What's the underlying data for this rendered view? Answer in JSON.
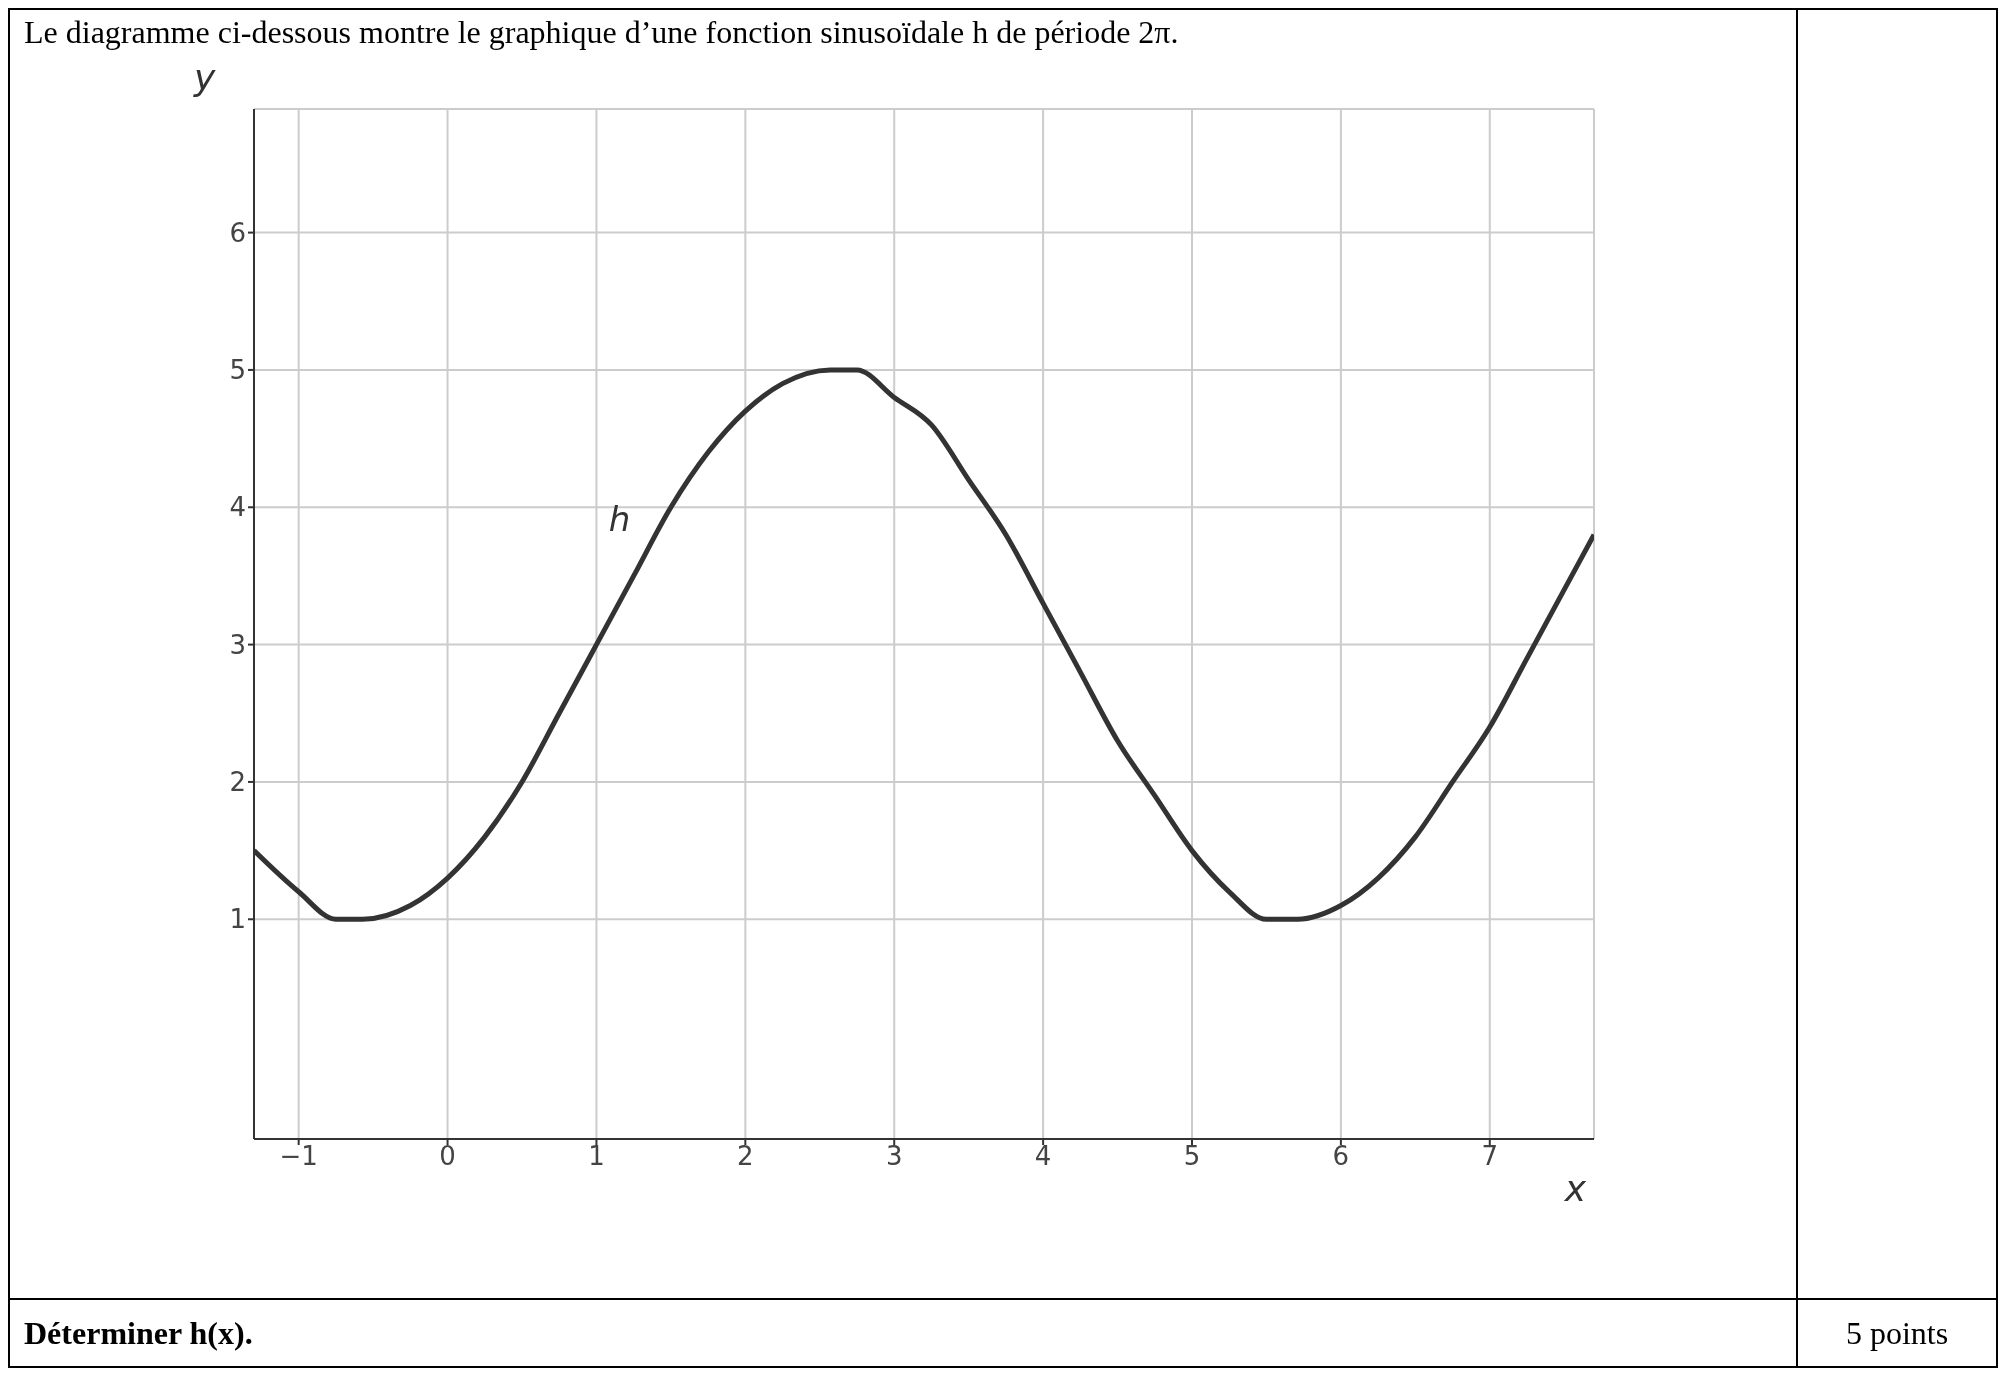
{
  "chart_data": {
    "type": "line",
    "title": "Le diagramme ci-dessous montre le graphique d’une fonction sinusoïdale h de période 2π.",
    "xlabel": "x",
    "ylabel": "y",
    "annotations": [
      "Déterminer h(x).",
      "5 points"
    ],
    "series": [
      {
        "name": "h",
        "color": "#333333",
        "x": [
          -1.3,
          -1,
          -0.75,
          -0.57,
          -0.25,
          0,
          0.25,
          0.5,
          0.75,
          1,
          1.25,
          1.5,
          1.75,
          2,
          2.25,
          2.57,
          2.75,
          3,
          3.25,
          3.5,
          3.75,
          4,
          4.25,
          4.5,
          4.75,
          5,
          5.25,
          5.5,
          5.71,
          6,
          6.25,
          6.5,
          6.75,
          7,
          7.25,
          7.5,
          7.7
        ],
        "values": [
          1.5,
          1.2,
          1.0,
          1.0,
          1.1,
          1.3,
          1.6,
          2.0,
          2.5,
          3.0,
          3.5,
          4.0,
          4.4,
          4.7,
          4.9,
          5.0,
          5.0,
          4.8,
          4.6,
          4.2,
          3.8,
          3.3,
          2.8,
          2.3,
          1.9,
          1.5,
          1.2,
          1.0,
          1.0,
          1.1,
          1.3,
          1.6,
          2.0,
          2.4,
          2.9,
          3.4,
          3.8
        ]
      }
    ],
    "xlim": [
      -1.3,
      7.7
    ],
    "xticks": [
      {
        "value": -1,
        "label": "−1"
      },
      0,
      1,
      2,
      3,
      4,
      5,
      6,
      7
    ],
    "ylim": [
      -0.6,
      6.9
    ],
    "yticks": [
      1,
      2,
      3,
      4,
      5,
      6
    ],
    "grid": true,
    "legend": false,
    "marker": "none",
    "line_style": "solid"
  }
}
